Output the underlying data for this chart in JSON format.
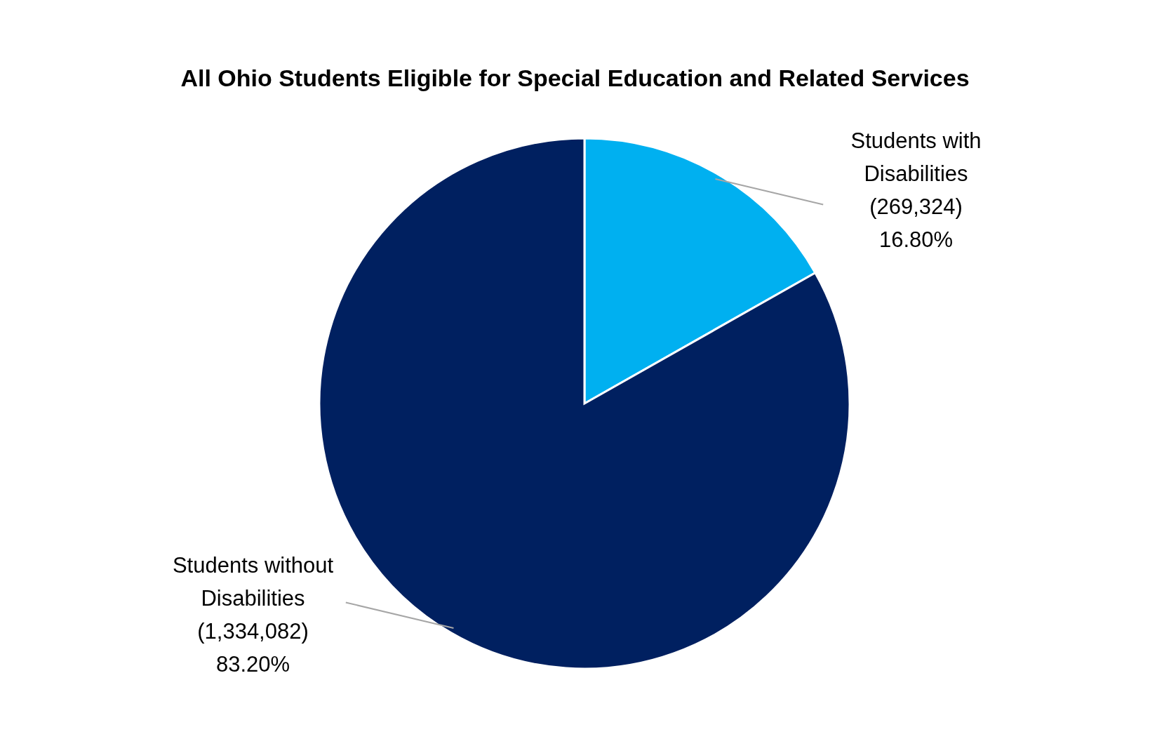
{
  "chart_data": {
    "type": "pie",
    "title": "All Ohio Students Eligible for Special Education and Related Services",
    "categories": [
      "Students with Disabilities",
      "Students without Disabilities"
    ],
    "values": [
      269324,
      1334082
    ],
    "colors": [
      "#00b0f0",
      "#002060"
    ],
    "value_labels": [
      "(269,324) 16.80%",
      "(1,334,082) 83.20%"
    ],
    "legend": false
  }
}
